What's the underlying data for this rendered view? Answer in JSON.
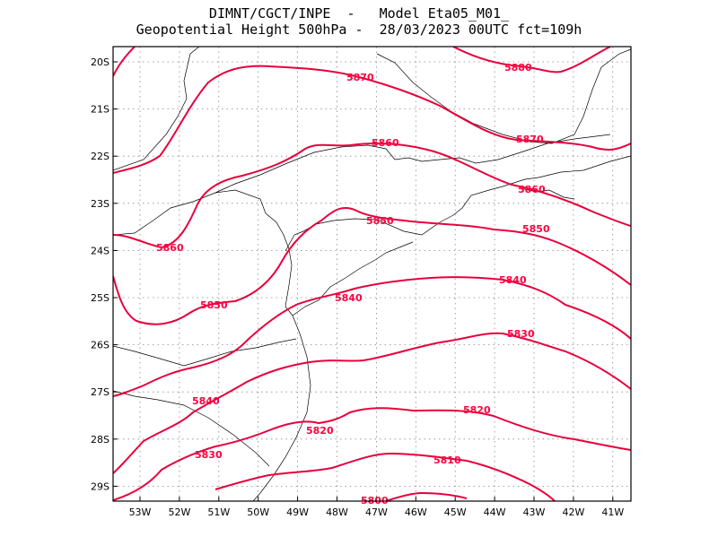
{
  "header": {
    "title_line1": "DIMNT/CGCT/INPE  -   Model Eta05_M01_",
    "title_line2": "Geopotential Height 500hPa -  28/03/2023 00UTC fct=109h"
  },
  "axes": {
    "x_ticks": [
      "53W",
      "52W",
      "51W",
      "50W",
      "49W",
      "48W",
      "47W",
      "46W",
      "45W",
      "44W",
      "43W",
      "42W",
      "41W"
    ],
    "y_ticks": [
      "20S",
      "21S",
      "22S",
      "23S",
      "24S",
      "25S",
      "26S",
      "27S",
      "28S",
      "29S"
    ]
  },
  "colors": {
    "contour": "#e8003c",
    "label": "#ff0040",
    "grid": "#888888",
    "border": "#000000"
  },
  "contours": [
    {
      "value": "5880",
      "label_text": "5880"
    },
    {
      "value": "5870",
      "label_text": "5870"
    },
    {
      "value": "5860",
      "label_text": "5860"
    },
    {
      "value": "5850",
      "label_text": "5850"
    },
    {
      "value": "5840",
      "label_text": "5840"
    },
    {
      "value": "5830",
      "label_text": "5830"
    },
    {
      "value": "5820",
      "label_text": "5820"
    },
    {
      "value": "5810",
      "label_text": "5810"
    },
    {
      "value": "5800",
      "label_text": "5800"
    }
  ]
}
